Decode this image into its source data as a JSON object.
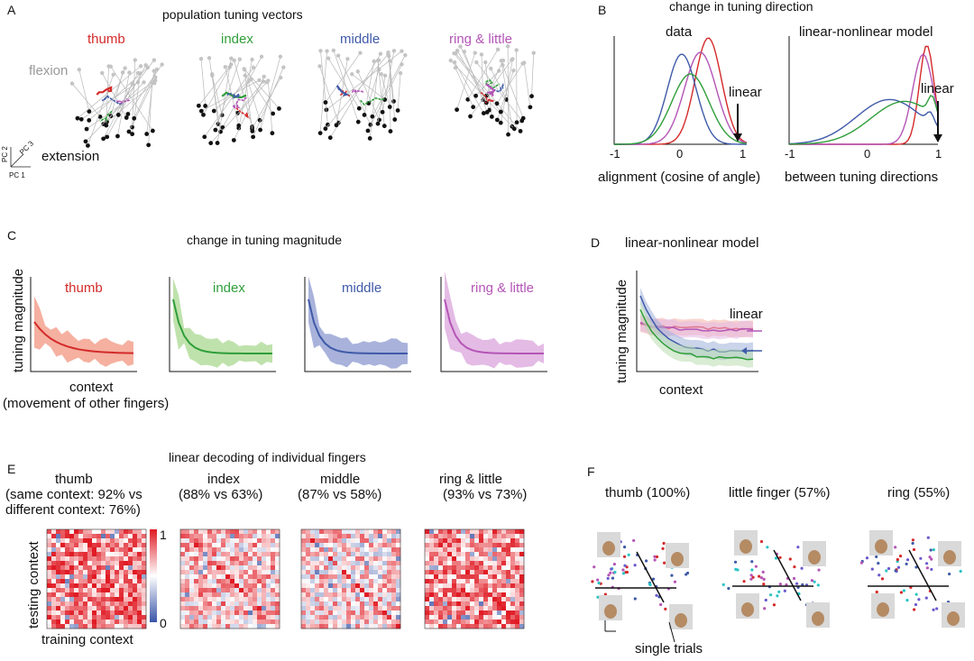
{
  "colors": {
    "thumb": "#d42a2a",
    "index": "#2f9e3a",
    "middle": "#3f5aa8",
    "ring": "#b455b6",
    "gray": "#9a9a9a",
    "shade_thumb": "#f2a48a",
    "shade_index": "#a9d890",
    "shade_middle": "#8b98cf",
    "shade_ring": "#dba4dc"
  },
  "panelA": {
    "letter": "A",
    "title": "population tuning vectors",
    "fingers": [
      "thumb",
      "index",
      "middle",
      "ring & little"
    ],
    "flexion": "flexion",
    "extension": "extension",
    "axes": {
      "pc1": "PC 1",
      "pc2": "PC 2",
      "pc3": "PC 3"
    }
  },
  "panelB": {
    "letter": "B",
    "title": "change in tuning direction",
    "left_label": "data",
    "right_label": "linear-nonlinear model",
    "linear": "linear",
    "ticks": [
      "-1",
      "0",
      "1"
    ],
    "xlabel_left": "alignment (cosine of angle)",
    "xlabel_right": "between tuning directions"
  },
  "panelC": {
    "letter": "C",
    "title": "change in tuning magnitude",
    "ylabel": "tuning magnitude",
    "xlabel1": "context",
    "xlabel2": "(movement of other fingers)",
    "fingers": [
      "thumb",
      "index",
      "middle",
      "ring & little"
    ]
  },
  "panelD": {
    "letter": "D",
    "title": "linear-nonlinear model",
    "ylabel": "tuning magnitude",
    "xlabel": "context",
    "linear": "linear"
  },
  "panelE": {
    "letter": "E",
    "title": "linear decoding of individual fingers",
    "headers": [
      {
        "l1": "thumb",
        "l2": "(same context: 92% vs",
        "l3": "different context: 76%)"
      },
      {
        "l1": "index",
        "l2": "(88% vs 63%)",
        "l3": ""
      },
      {
        "l1": "middle",
        "l2": "(87% vs 58%)",
        "l3": ""
      },
      {
        "l1": "ring & little",
        "l2": "(93% vs 73%)",
        "l3": ""
      }
    ],
    "ylabel": "testing context",
    "xlabel": "training context",
    "cbar_max": "1",
    "cbar_min": "0",
    "mean_same": [
      0.92,
      0.88,
      0.87,
      0.93
    ],
    "mean_diff": [
      0.76,
      0.63,
      0.58,
      0.73
    ]
  },
  "panelF": {
    "letter": "F",
    "titles": [
      "thumb (100%)",
      "little finger (57%)",
      "ring (55%)"
    ],
    "annotation": "single trials"
  },
  "chart_data": [
    {
      "type": "line",
      "panel": "B",
      "title": "change in tuning direction",
      "subplots": [
        "data",
        "linear-nonlinear model"
      ],
      "xlabel": "alignment (cosine of angle) between tuning directions",
      "xlim": [
        -1,
        1
      ],
      "annotation": "linear",
      "series": [
        {
          "name": "thumb"
        },
        {
          "name": "index"
        },
        {
          "name": "middle"
        },
        {
          "name": "ring & little"
        }
      ]
    },
    {
      "type": "area",
      "panel": "C",
      "title": "change in tuning magnitude",
      "xlabel": "context (movement of other fingers)",
      "ylabel": "tuning magnitude",
      "series": [
        {
          "name": "thumb"
        },
        {
          "name": "index"
        },
        {
          "name": "middle"
        },
        {
          "name": "ring & little"
        }
      ]
    },
    {
      "type": "line",
      "panel": "D",
      "title": "linear-nonlinear model",
      "xlabel": "context",
      "ylabel": "tuning magnitude",
      "annotation": "linear"
    },
    {
      "type": "heatmap",
      "panel": "E",
      "title": "linear decoding of individual fingers",
      "xlabel": "training context",
      "ylabel": "testing context",
      "colorbar": [
        0,
        1
      ]
    }
  ]
}
